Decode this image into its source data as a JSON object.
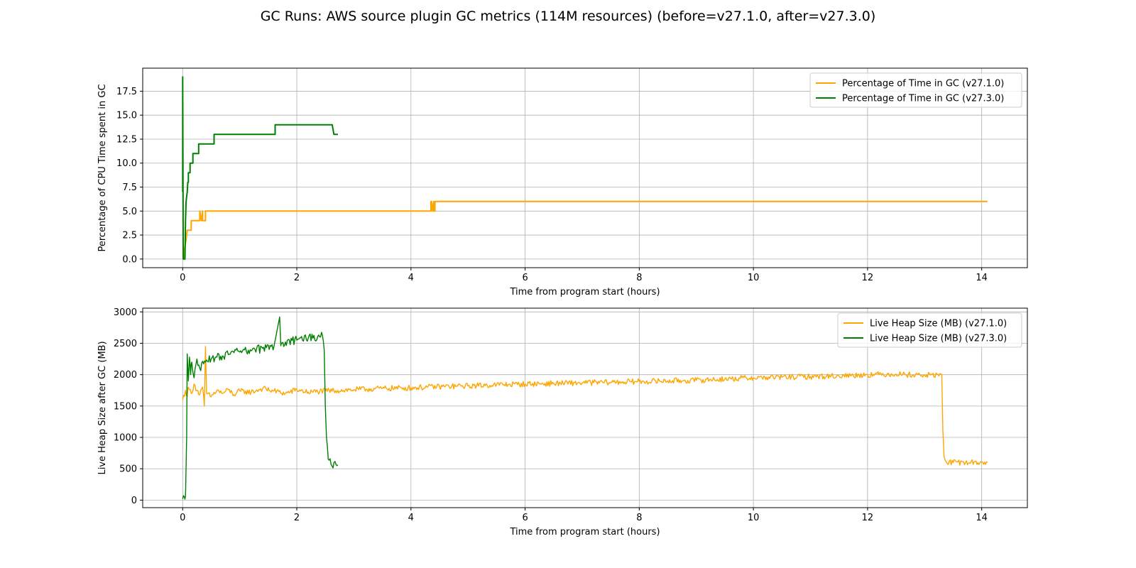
{
  "figure": {
    "title": "GC Runs: AWS source plugin GC metrics (114M resources) (before=v27.1.0, after=v27.3.0)"
  },
  "colors": {
    "before": "#ffa500",
    "after": "#008000",
    "grid": "#b0b0b0"
  },
  "chart_data": [
    {
      "type": "line",
      "xlabel": "Time from program start (hours)",
      "ylabel": "Percentage of CPU Time spent in GC",
      "xlim": [
        -0.7,
        14.8
      ],
      "ylim": [
        -0.9,
        19.9
      ],
      "xticks": [
        0,
        2,
        4,
        6,
        8,
        10,
        12,
        14
      ],
      "xtick_labels": [
        "0",
        "2",
        "4",
        "6",
        "8",
        "10",
        "12",
        "14"
      ],
      "yticks": [
        0.0,
        2.5,
        5.0,
        7.5,
        10.0,
        12.5,
        15.0,
        17.5
      ],
      "ytick_labels": [
        "0.0",
        "2.5",
        "5.0",
        "7.5",
        "10.0",
        "12.5",
        "15.0",
        "17.5"
      ],
      "grid": true,
      "legend_position": "top-right",
      "series": [
        {
          "name": "Percentage of Time in GC (v27.1.0)",
          "color_key": "before",
          "x": [
            0.0,
            0.02,
            0.03,
            0.06,
            0.08,
            0.1,
            0.1,
            0.15,
            0.15,
            0.3,
            0.3,
            0.33,
            0.35,
            0.35,
            0.4,
            0.4,
            4.35,
            4.35,
            4.38,
            4.36,
            4.4,
            4.4,
            4.42,
            4.42,
            14.1
          ],
          "y": [
            0,
            0,
            1,
            2,
            3,
            3,
            3,
            3,
            4,
            4,
            5,
            4,
            5,
            4,
            4,
            5,
            5,
            6,
            5,
            6,
            5,
            6,
            5,
            6,
            6
          ]
        },
        {
          "name": "Percentage of Time in GC (v27.3.0)",
          "color_key": "after",
          "x": [
            0.0,
            0.0,
            0.01,
            0.02,
            0.04,
            0.05,
            0.06,
            0.08,
            0.09,
            0.1,
            0.1,
            0.13,
            0.13,
            0.18,
            0.18,
            0.28,
            0.28,
            0.55,
            0.55,
            1.62,
            1.62,
            2.62,
            2.65,
            2.72
          ],
          "y": [
            7,
            19,
            0,
            0,
            0,
            4,
            6,
            7,
            8,
            8,
            9,
            9,
            10,
            10,
            11,
            11,
            12,
            12,
            13,
            13,
            14,
            14,
            13,
            13
          ]
        }
      ]
    },
    {
      "type": "line",
      "xlabel": "Time from program start (hours)",
      "ylabel": "Live Heap Size after GC (MB)",
      "xlim": [
        -0.7,
        14.8
      ],
      "ylim": [
        -120,
        3060
      ],
      "xticks": [
        0,
        2,
        4,
        6,
        8,
        10,
        12,
        14
      ],
      "xtick_labels": [
        "0",
        "2",
        "4",
        "6",
        "8",
        "10",
        "12",
        "14"
      ],
      "yticks": [
        0,
        500,
        1000,
        1500,
        2000,
        2500,
        3000
      ],
      "ytick_labels": [
        "0",
        "500",
        "1000",
        "1500",
        "2000",
        "2500",
        "3000"
      ],
      "grid": true,
      "legend_position": "top-right",
      "series": [
        {
          "name": "Live Heap Size (MB) (v27.1.0)",
          "color_key": "before",
          "x": [
            0.0,
            0.05,
            0.08,
            0.1,
            0.15,
            0.2,
            0.25,
            0.3,
            0.35,
            0.38,
            0.4,
            0.42,
            0.5,
            0.6,
            0.7,
            0.8,
            0.9,
            1.0,
            1.2,
            1.4,
            1.6,
            1.8,
            2.0,
            2.2,
            2.5,
            3.0,
            3.5,
            4.0,
            4.5,
            5.0,
            5.5,
            6.0,
            6.5,
            7.0,
            7.5,
            8.0,
            8.5,
            9.0,
            9.5,
            10.0,
            10.5,
            11.0,
            11.5,
            12.0,
            12.5,
            13.0,
            13.3,
            13.32,
            13.34,
            13.38,
            13.5,
            14.1
          ],
          "y": [
            1600,
            1750,
            1650,
            1800,
            1700,
            1850,
            1750,
            1680,
            1800,
            1500,
            2450,
            1700,
            1650,
            1750,
            1700,
            1760,
            1680,
            1740,
            1720,
            1780,
            1740,
            1700,
            1760,
            1720,
            1740,
            1760,
            1780,
            1790,
            1810,
            1820,
            1840,
            1850,
            1860,
            1870,
            1880,
            1890,
            1900,
            1910,
            1930,
            1950,
            1960,
            1970,
            1980,
            2000,
            2010,
            1990,
            2000,
            1100,
            700,
            610,
            600,
            600
          ]
        },
        {
          "name": "Live Heap Size (MB) (v27.3.0)",
          "color_key": "after",
          "x": [
            0.0,
            0.03,
            0.05,
            0.07,
            0.08,
            0.1,
            0.12,
            0.14,
            0.16,
            0.2,
            0.25,
            0.3,
            0.4,
            0.5,
            0.6,
            0.7,
            0.8,
            0.9,
            1.0,
            1.2,
            1.4,
            1.6,
            1.7,
            1.72,
            1.74,
            1.8,
            2.0,
            2.2,
            2.4,
            2.45,
            2.48,
            2.5,
            2.52,
            2.55,
            2.6,
            2.72
          ],
          "y": [
            20,
            50,
            70,
            1000,
            2330,
            1900,
            2280,
            2000,
            2200,
            1950,
            2250,
            2100,
            2200,
            2250,
            2280,
            2300,
            2320,
            2350,
            2360,
            2380,
            2420,
            2450,
            2920,
            2460,
            2500,
            2520,
            2550,
            2580,
            2600,
            2620,
            2400,
            1500,
            1000,
            650,
            570,
            560
          ]
        }
      ]
    }
  ]
}
